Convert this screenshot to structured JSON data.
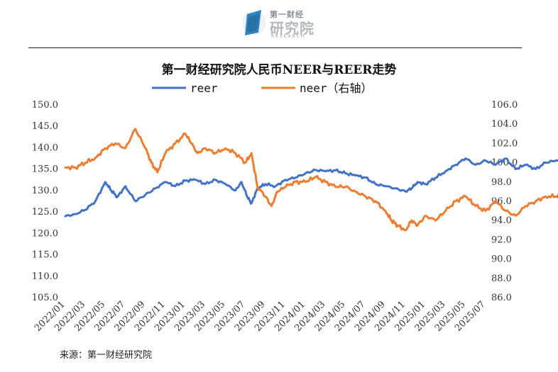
{
  "logo": {
    "title": "第一财经",
    "main": "研究院",
    "sub": "RESEARCH"
  },
  "source": "来源：第一财经研究院",
  "chart_data": {
    "type": "line",
    "title": "第一财经研究院人民币NEER与REER走势",
    "x_ticks": [
      "2022/01",
      "2022/03",
      "2022/05",
      "2022/07",
      "2022/09",
      "2022/11",
      "2023/01",
      "2023/03",
      "2023/05",
      "2023/07",
      "2023/09",
      "2023/11",
      "2024/01",
      "2024/03",
      "2024/05",
      "2024/07",
      "2024/09",
      "2024/11",
      "2025/01",
      "2025/03",
      "2025/05",
      "2025/07"
    ],
    "y_left": {
      "ylim": [
        105.0,
        150.0
      ],
      "ticks": [
        "105.0",
        "110.0",
        "115.0",
        "120.0",
        "125.0",
        "130.0",
        "135.0",
        "140.0",
        "145.0",
        "150.0"
      ]
    },
    "y_right": {
      "ylim": [
        86.0,
        106.0
      ],
      "ticks": [
        "86.0",
        "88.0",
        "90.0",
        "92.0",
        "94.0",
        "96.0",
        "98.0",
        "100.0",
        "102.0",
        "104.0",
        "106.0"
      ]
    },
    "legend_position": "top",
    "series": [
      {
        "name": "reer",
        "axis": "left",
        "color": "#4472C4",
        "points": [
          [
            0,
            124.0
          ],
          [
            0.5,
            124.5
          ],
          [
            1,
            125.5
          ],
          [
            1.5,
            127.5
          ],
          [
            2,
            132.0
          ],
          [
            2.3,
            130.0
          ],
          [
            2.6,
            128.5
          ],
          [
            3,
            131.0
          ],
          [
            3.5,
            127.5
          ],
          [
            4,
            129.0
          ],
          [
            4.5,
            130.5
          ],
          [
            5,
            132.0
          ],
          [
            5.5,
            131.0
          ],
          [
            6,
            132.3
          ],
          [
            6.5,
            132.5
          ],
          [
            7,
            131.5
          ],
          [
            7.5,
            132.5
          ],
          [
            8,
            131.5
          ],
          [
            8.5,
            130.0
          ],
          [
            8.8,
            132.0
          ],
          [
            9.1,
            128.5
          ],
          [
            9.3,
            127.0
          ],
          [
            9.6,
            130.5
          ],
          [
            10,
            131.5
          ],
          [
            10.5,
            131.0
          ],
          [
            11,
            132.5
          ],
          [
            11.5,
            133.0
          ],
          [
            12,
            134.0
          ],
          [
            12.5,
            134.8
          ],
          [
            13,
            134.5
          ],
          [
            13.5,
            134.7
          ],
          [
            14,
            134.0
          ],
          [
            14.5,
            133.5
          ],
          [
            15,
            133.0
          ],
          [
            15.5,
            131.5
          ],
          [
            16,
            131.0
          ],
          [
            16.5,
            130.5
          ],
          [
            17,
            129.8
          ],
          [
            17.3,
            130.5
          ],
          [
            17.6,
            132.0
          ],
          [
            18,
            131.5
          ],
          [
            18.5,
            133.0
          ],
          [
            19,
            134.5
          ],
          [
            19.5,
            136.0
          ],
          [
            20,
            137.5
          ],
          [
            20.5,
            136.0
          ],
          [
            21,
            137.0
          ],
          [
            21.5,
            136.0
          ],
          [
            22,
            137.5
          ],
          [
            22.5,
            135.0
          ],
          [
            23,
            136.0
          ],
          [
            23.5,
            135.0
          ],
          [
            24,
            136.5
          ],
          [
            24.5,
            137.0
          ],
          [
            25,
            136.5
          ],
          [
            25.5,
            137.5
          ],
          [
            26,
            138.5
          ],
          [
            26.5,
            138.0
          ],
          [
            27,
            140.5
          ],
          [
            27.3,
            141.0
          ],
          [
            27.6,
            139.5
          ],
          [
            28,
            139.0
          ],
          [
            28.5,
            139.5
          ],
          [
            29,
            139.0
          ],
          [
            29.5,
            139.5
          ],
          [
            30,
            139.0
          ],
          [
            30.5,
            138.5
          ],
          [
            31,
            137.5
          ],
          [
            31.5,
            137.5
          ],
          [
            32,
            137.0
          ],
          [
            32.5,
            138.5
          ],
          [
            33,
            140.0
          ],
          [
            33.5,
            140.5
          ],
          [
            34,
            140.8
          ],
          [
            34.5,
            141.0
          ],
          [
            35,
            141.5
          ],
          [
            35.5,
            141.3
          ],
          [
            36,
            142.0
          ],
          [
            36.5,
            142.5
          ],
          [
            37,
            142.8
          ],
          [
            37.5,
            142.2
          ],
          [
            38,
            141.5
          ],
          [
            38.3,
            142.8
          ],
          [
            38.6,
            140.5
          ],
          [
            39,
            141.5
          ],
          [
            39.3,
            137.5
          ],
          [
            39.6,
            136.5
          ],
          [
            40,
            137.0
          ],
          [
            40.5,
            136.5
          ],
          [
            41,
            136.0
          ],
          [
            41.5,
            135.5
          ],
          [
            42,
            136.0
          ],
          [
            42.5,
            136.0
          ],
          [
            43,
            137.0
          ]
        ]
      },
      {
        "name": "neer（右轴）",
        "axis": "right",
        "color": "#ED7D31",
        "points": [
          [
            0,
            99.5
          ],
          [
            0.5,
            99.5
          ],
          [
            1,
            100.0
          ],
          [
            1.5,
            100.5
          ],
          [
            2,
            101.5
          ],
          [
            2.5,
            102.0
          ],
          [
            3,
            101.5
          ],
          [
            3.5,
            103.5
          ],
          [
            4,
            101.5
          ],
          [
            4.3,
            100.0
          ],
          [
            4.6,
            99.0
          ],
          [
            5,
            101.0
          ],
          [
            5.5,
            102.0
          ],
          [
            6,
            103.0
          ],
          [
            6.3,
            102.0
          ],
          [
            6.6,
            101.0
          ],
          [
            7,
            101.5
          ],
          [
            7.5,
            101.0
          ],
          [
            8,
            101.5
          ],
          [
            8.5,
            101.0
          ],
          [
            9,
            100.0
          ],
          [
            9.3,
            101.0
          ],
          [
            9.6,
            97.5
          ],
          [
            10,
            96.5
          ],
          [
            10.3,
            95.5
          ],
          [
            10.6,
            97.0
          ],
          [
            11,
            97.5
          ],
          [
            11.5,
            98.0
          ],
          [
            12,
            98.0
          ],
          [
            12.5,
            98.5
          ],
          [
            13,
            98.0
          ],
          [
            13.5,
            97.5
          ],
          [
            14,
            97.5
          ],
          [
            14.5,
            97.0
          ],
          [
            15,
            96.5
          ],
          [
            15.5,
            96.0
          ],
          [
            16,
            95.0
          ],
          [
            16.3,
            94.0
          ],
          [
            16.6,
            93.5
          ],
          [
            17,
            93.0
          ],
          [
            17.3,
            94.0
          ],
          [
            17.6,
            93.5
          ],
          [
            18,
            94.5
          ],
          [
            18.5,
            94.0
          ],
          [
            19,
            95.0
          ],
          [
            19.5,
            96.0
          ],
          [
            20,
            96.5
          ],
          [
            20.5,
            95.5
          ],
          [
            21,
            95.0
          ],
          [
            21.5,
            96.0
          ],
          [
            22,
            95.0
          ],
          [
            22.5,
            94.5
          ],
          [
            23,
            95.5
          ],
          [
            23.5,
            96.0
          ],
          [
            24,
            96.5
          ],
          [
            24.5,
            96.5
          ],
          [
            25,
            97.0
          ],
          [
            25.5,
            96.0
          ],
          [
            26,
            97.5
          ],
          [
            26.5,
            97.0
          ],
          [
            27,
            97.5
          ],
          [
            27.5,
            98.5
          ],
          [
            28,
            97.5
          ],
          [
            28.5,
            97.5
          ],
          [
            29,
            98.0
          ],
          [
            29.5,
            97.5
          ],
          [
            30,
            97.0
          ],
          [
            30.5,
            96.5
          ],
          [
            31,
            95.0
          ],
          [
            31.5,
            94.5
          ],
          [
            32,
            95.0
          ],
          [
            32.5,
            95.5
          ],
          [
            33,
            96.0
          ],
          [
            33.5,
            96.5
          ],
          [
            34,
            96.5
          ],
          [
            34.5,
            96.5
          ],
          [
            35,
            96.0
          ],
          [
            35.5,
            98.5
          ],
          [
            36,
            99.0
          ],
          [
            36.5,
            99.5
          ],
          [
            37,
            99.0
          ],
          [
            37.5,
            98.5
          ],
          [
            38,
            97.5
          ],
          [
            38.5,
            96.5
          ],
          [
            38.8,
            97.0
          ],
          [
            39.2,
            95.5
          ],
          [
            39.4,
            93.0
          ],
          [
            39.6,
            92.5
          ],
          [
            40,
            93.5
          ],
          [
            40.3,
            93.0
          ],
          [
            40.6,
            94.5
          ],
          [
            41,
            93.5
          ],
          [
            41.5,
            93.0
          ],
          [
            42,
            92.8
          ],
          [
            42.5,
            93.5
          ],
          [
            43,
            94.5
          ]
        ]
      }
    ]
  }
}
